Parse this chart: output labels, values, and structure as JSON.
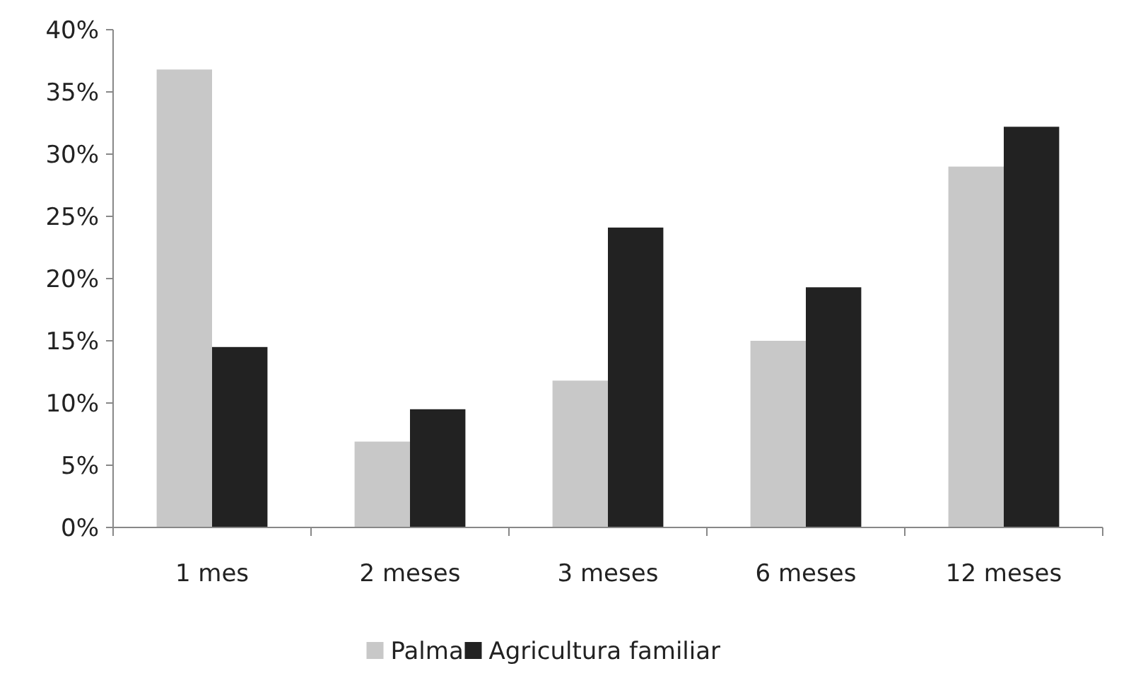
{
  "chart_data": {
    "type": "bar",
    "categories": [
      "1 mes",
      "2 meses",
      "3 meses",
      "6 meses",
      "12 meses"
    ],
    "series": [
      {
        "name": "Palma",
        "color": "#c8c8c8",
        "values": [
          36.8,
          6.9,
          11.8,
          15.0,
          29.0
        ]
      },
      {
        "name": "Agricultura familiar",
        "color": "#222222",
        "values": [
          14.5,
          9.5,
          24.1,
          19.3,
          32.2
        ]
      }
    ],
    "ylim": [
      0,
      40
    ],
    "yticks": [
      {
        "value": 0,
        "label": "0%"
      },
      {
        "value": 5,
        "label": "5%"
      },
      {
        "value": 10,
        "label": "10%"
      },
      {
        "value": 15,
        "label": "15%"
      },
      {
        "value": 20,
        "label": "20%"
      },
      {
        "value": 25,
        "label": "25%"
      },
      {
        "value": 30,
        "label": "30%"
      },
      {
        "value": 35,
        "label": "35%"
      },
      {
        "value": 40,
        "label": "40%"
      }
    ],
    "grid": false,
    "legend": "bottom"
  }
}
